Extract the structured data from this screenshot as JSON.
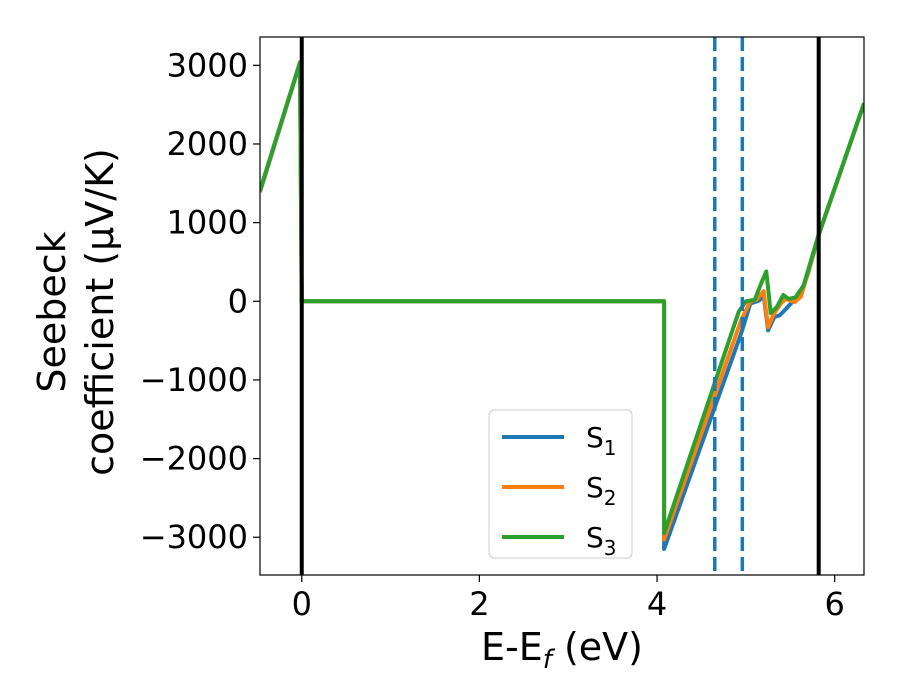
{
  "chart_data": {
    "type": "line",
    "title": "",
    "xlabel_main": "E-E",
    "xlabel_sub": "f",
    "xlabel_tail": " (eV)",
    "ylabel_line1": "Seebeck",
    "ylabel_line2": "coefficient  (μV/K)",
    "xlim": [
      -0.47,
      6.33
    ],
    "ylim": [
      -3480,
      3360
    ],
    "xticks": [
      0,
      2,
      4,
      6
    ],
    "yticks": [
      -3000,
      -2000,
      -1000,
      0,
      1000,
      2000,
      3000
    ],
    "ytick_labels": [
      "−3000",
      "−2000",
      "−1000",
      "0",
      "1000",
      "2000",
      "3000"
    ],
    "grid": false,
    "legend_position": "lower-center-right",
    "vertical_lines": [
      {
        "x": 0.0,
        "style": "solid",
        "color": "#000000"
      },
      {
        "x": 5.82,
        "style": "solid",
        "color": "#000000"
      },
      {
        "x": 4.65,
        "style": "dashed",
        "color": "#1f77b4"
      },
      {
        "x": 4.96,
        "style": "dashed",
        "color": "#1f77b4"
      }
    ],
    "series": [
      {
        "name": "S",
        "sub": "1",
        "color": "#1f77b4",
        "points": [
          [
            -0.47,
            1390
          ],
          [
            -0.02,
            3030
          ],
          [
            0.0,
            0
          ],
          [
            4.08,
            0
          ],
          [
            4.08,
            -3150
          ],
          [
            4.95,
            -400
          ],
          [
            5.05,
            -30
          ],
          [
            5.15,
            10
          ],
          [
            5.2,
            80
          ],
          [
            5.25,
            -370
          ],
          [
            5.32,
            -200
          ],
          [
            5.38,
            -180
          ],
          [
            5.45,
            -100
          ],
          [
            5.52,
            -10
          ],
          [
            5.6,
            50
          ],
          [
            5.7,
            350
          ],
          [
            5.82,
            840
          ],
          [
            6.33,
            2510
          ]
        ]
      },
      {
        "name": "S",
        "sub": "2",
        "color": "#ff7f0e",
        "points": [
          [
            -0.47,
            1400
          ],
          [
            -0.02,
            3035
          ],
          [
            0.0,
            0
          ],
          [
            4.08,
            0
          ],
          [
            4.08,
            -3030
          ],
          [
            4.95,
            -230
          ],
          [
            5.05,
            0
          ],
          [
            5.12,
            20
          ],
          [
            5.2,
            130
          ],
          [
            5.25,
            -330
          ],
          [
            5.32,
            -150
          ],
          [
            5.4,
            -20
          ],
          [
            5.45,
            30
          ],
          [
            5.55,
            -10
          ],
          [
            5.62,
            60
          ],
          [
            5.7,
            360
          ],
          [
            5.82,
            845
          ],
          [
            6.33,
            2515
          ]
        ]
      },
      {
        "name": "S",
        "sub": "3",
        "color": "#2ca02c",
        "points": [
          [
            -0.47,
            1410
          ],
          [
            -0.02,
            3040
          ],
          [
            0.0,
            0
          ],
          [
            4.08,
            0
          ],
          [
            4.08,
            -2950
          ],
          [
            4.92,
            -130
          ],
          [
            5.0,
            0
          ],
          [
            5.1,
            20
          ],
          [
            5.18,
            250
          ],
          [
            5.23,
            380
          ],
          [
            5.28,
            -150
          ],
          [
            5.35,
            -70
          ],
          [
            5.42,
            80
          ],
          [
            5.48,
            30
          ],
          [
            5.56,
            50
          ],
          [
            5.65,
            200
          ],
          [
            5.82,
            850
          ],
          [
            6.33,
            2520
          ]
        ]
      }
    ]
  }
}
